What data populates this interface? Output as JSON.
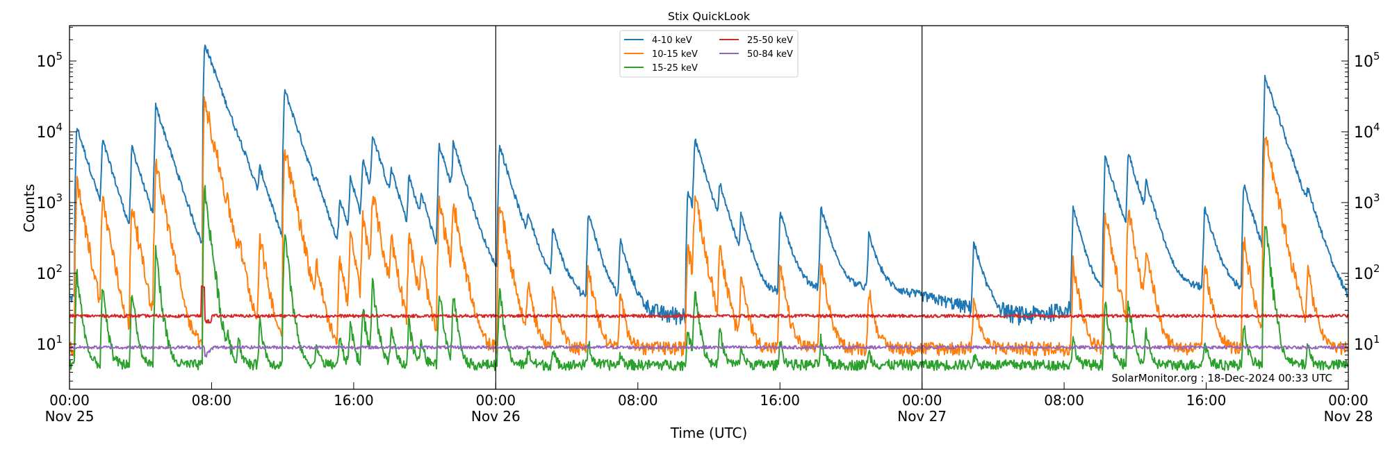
{
  "chart_data": {
    "type": "line",
    "title": "Stix QuickLook",
    "xlabel": "Time (UTC)",
    "ylabel": "Counts",
    "yscale": "log",
    "ylim": [
      2.3,
      316000
    ],
    "xlim_hours": [
      0,
      72
    ],
    "x_ticks": [
      {
        "hour": 0,
        "time": "00:00",
        "date": "Nov 25"
      },
      {
        "hour": 8,
        "time": "08:00",
        "date": ""
      },
      {
        "hour": 16,
        "time": "16:00",
        "date": ""
      },
      {
        "hour": 24,
        "time": "00:00",
        "date": "Nov 26"
      },
      {
        "hour": 32,
        "time": "08:00",
        "date": ""
      },
      {
        "hour": 40,
        "time": "16:00",
        "date": ""
      },
      {
        "hour": 48,
        "time": "00:00",
        "date": "Nov 27"
      },
      {
        "hour": 56,
        "time": "08:00",
        "date": ""
      },
      {
        "hour": 64,
        "time": "16:00",
        "date": ""
      },
      {
        "hour": 72,
        "time": "00:00",
        "date": "Nov 28"
      }
    ],
    "y_ticks": [
      {
        "value": 10,
        "base": "10",
        "exp": "1"
      },
      {
        "value": 100,
        "base": "10",
        "exp": "2"
      },
      {
        "value": 1000,
        "base": "10",
        "exp": "3"
      },
      {
        "value": 10000,
        "base": "10",
        "exp": "4"
      },
      {
        "value": 100000,
        "base": "10",
        "exp": "5"
      }
    ],
    "day_boundaries_hours": [
      24,
      48
    ],
    "legend_position": "top-center",
    "series": [
      {
        "name": "4-10 keV",
        "color": "#1f77b4",
        "baseline": 45
      },
      {
        "name": "10-15 keV",
        "color": "#ff7f0e",
        "baseline": 8
      },
      {
        "name": "15-25 keV",
        "color": "#2ca02c",
        "baseline": 5
      },
      {
        "name": "25-50 keV",
        "color": "#d62728",
        "baseline": 25
      },
      {
        "name": "50-84 keV",
        "color": "#9467bd",
        "baseline": 9
      }
    ],
    "flares_4_10keV": [
      [
        0.4,
        12000
      ],
      [
        1.85,
        7000
      ],
      [
        3.5,
        6000
      ],
      [
        4.85,
        23000
      ],
      [
        7.6,
        180000
      ],
      [
        8.9,
        800
      ],
      [
        9.5,
        800
      ],
      [
        10.7,
        2000
      ],
      [
        12.1,
        40000
      ],
      [
        13.9,
        600
      ],
      [
        15.2,
        1000
      ],
      [
        15.8,
        2000
      ],
      [
        16.5,
        3500
      ],
      [
        17.05,
        8000
      ],
      [
        18.1,
        1800
      ],
      [
        19.1,
        2000
      ],
      [
        19.8,
        800
      ],
      [
        20.8,
        6500
      ],
      [
        21.6,
        5800
      ],
      [
        24.2,
        6500
      ],
      [
        25.8,
        400
      ],
      [
        27.2,
        350
      ],
      [
        29.2,
        700
      ],
      [
        31.0,
        250
      ],
      [
        34.8,
        1500
      ],
      [
        35.2,
        7500
      ],
      [
        36.6,
        1400
      ],
      [
        37.8,
        500
      ],
      [
        40.0,
        700
      ],
      [
        42.3,
        800
      ],
      [
        45.0,
        300
      ],
      [
        50.9,
        250
      ],
      [
        56.5,
        800
      ],
      [
        58.3,
        4500
      ],
      [
        59.6,
        4800
      ],
      [
        60.6,
        1300
      ],
      [
        63.9,
        800
      ],
      [
        66.1,
        1800
      ],
      [
        67.3,
        60000
      ],
      [
        69.7,
        600
      ]
    ]
  },
  "footer": {
    "timestamp": "SolarMonitor.org : 18-Dec-2024 00:33 UTC"
  }
}
